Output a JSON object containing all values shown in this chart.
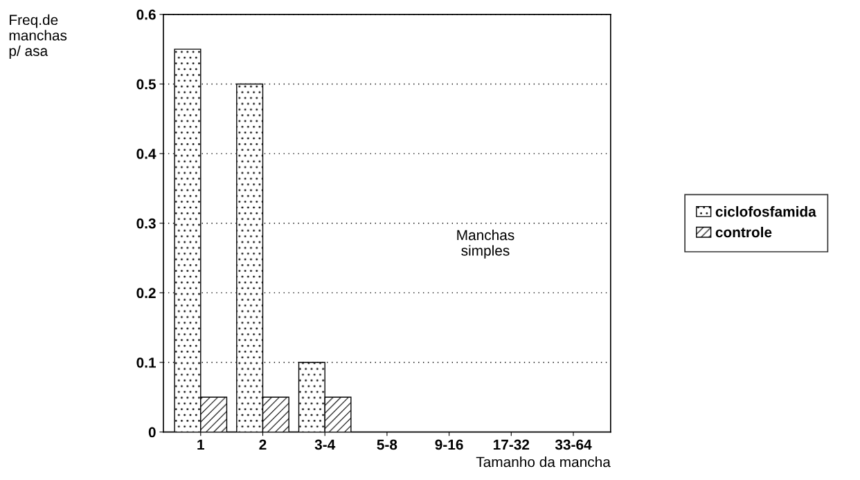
{
  "chart_data": {
    "type": "bar",
    "xlabel": "Tamanho da mancha",
    "ylabel": "Freq.de\nmanchas\np/ asa",
    "categories": [
      "1",
      "2",
      "3-4",
      "5-8",
      "9-16",
      "17-32",
      "33-64"
    ],
    "series": [
      {
        "name": "ciclofosfamida",
        "color": "#000000",
        "values": [
          0.55,
          0.5,
          0.1,
          0,
          0,
          0,
          0
        ]
      },
      {
        "name": "controle",
        "color": "#000000",
        "values": [
          0.05,
          0.05,
          0.05,
          0,
          0,
          0,
          0
        ]
      }
    ],
    "ylim": [
      0,
      0.6
    ],
    "yticks": [
      0,
      0.1,
      0.2,
      0.3,
      0.4,
      0.5,
      0.6
    ],
    "annotations": [
      "Manchas\nsimples"
    ],
    "grid": "y",
    "legend": "right"
  }
}
